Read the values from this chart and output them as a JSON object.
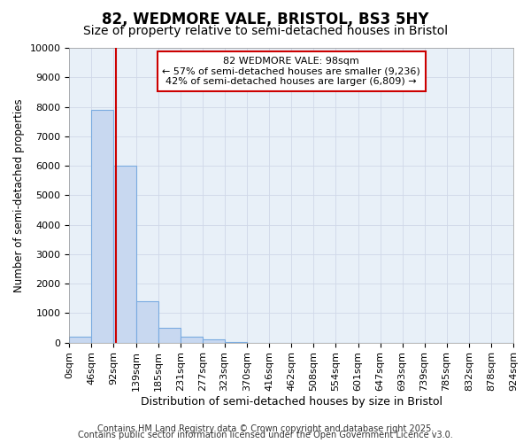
{
  "title": "82, WEDMORE VALE, BRISTOL, BS3 5HY",
  "subtitle": "Size of property relative to semi-detached houses in Bristol",
  "xlabel": "Distribution of semi-detached houses by size in Bristol",
  "ylabel": "Number of semi-detached properties",
  "property_size": 98,
  "property_label": "82 WEDMORE VALE: 98sqm",
  "pct_smaller": 57,
  "pct_larger": 42,
  "n_smaller": 9236,
  "n_larger": 6809,
  "bin_edges": [
    0,
    46,
    92,
    139,
    185,
    231,
    277,
    323,
    370,
    416,
    462,
    508,
    554,
    601,
    647,
    693,
    739,
    785,
    832,
    878,
    924
  ],
  "bin_counts": [
    200,
    7900,
    6000,
    1400,
    500,
    200,
    110,
    30,
    0,
    0,
    0,
    0,
    0,
    0,
    0,
    0,
    0,
    0,
    0,
    0
  ],
  "bar_color": "#c8d8f0",
  "bar_edge_color": "#7aabe0",
  "bar_linewidth": 0.8,
  "vline_color": "#cc0000",
  "vline_x": 98,
  "ylim": [
    0,
    10000
  ],
  "yticks": [
    0,
    1000,
    2000,
    3000,
    4000,
    5000,
    6000,
    7000,
    8000,
    9000,
    10000
  ],
  "grid_color": "#d0d8e8",
  "bg_color": "#ffffff",
  "plot_bg_color": "#e8f0f8",
  "annotation_box_color": "#cc0000",
  "footer1": "Contains HM Land Registry data © Crown copyright and database right 2025.",
  "footer2": "Contains public sector information licensed under the Open Government Licence v3.0.",
  "title_fontsize": 12,
  "subtitle_fontsize": 10,
  "xlabel_fontsize": 9,
  "ylabel_fontsize": 8.5,
  "tick_fontsize": 8,
  "ann_fontsize": 8,
  "footer_fontsize": 7
}
